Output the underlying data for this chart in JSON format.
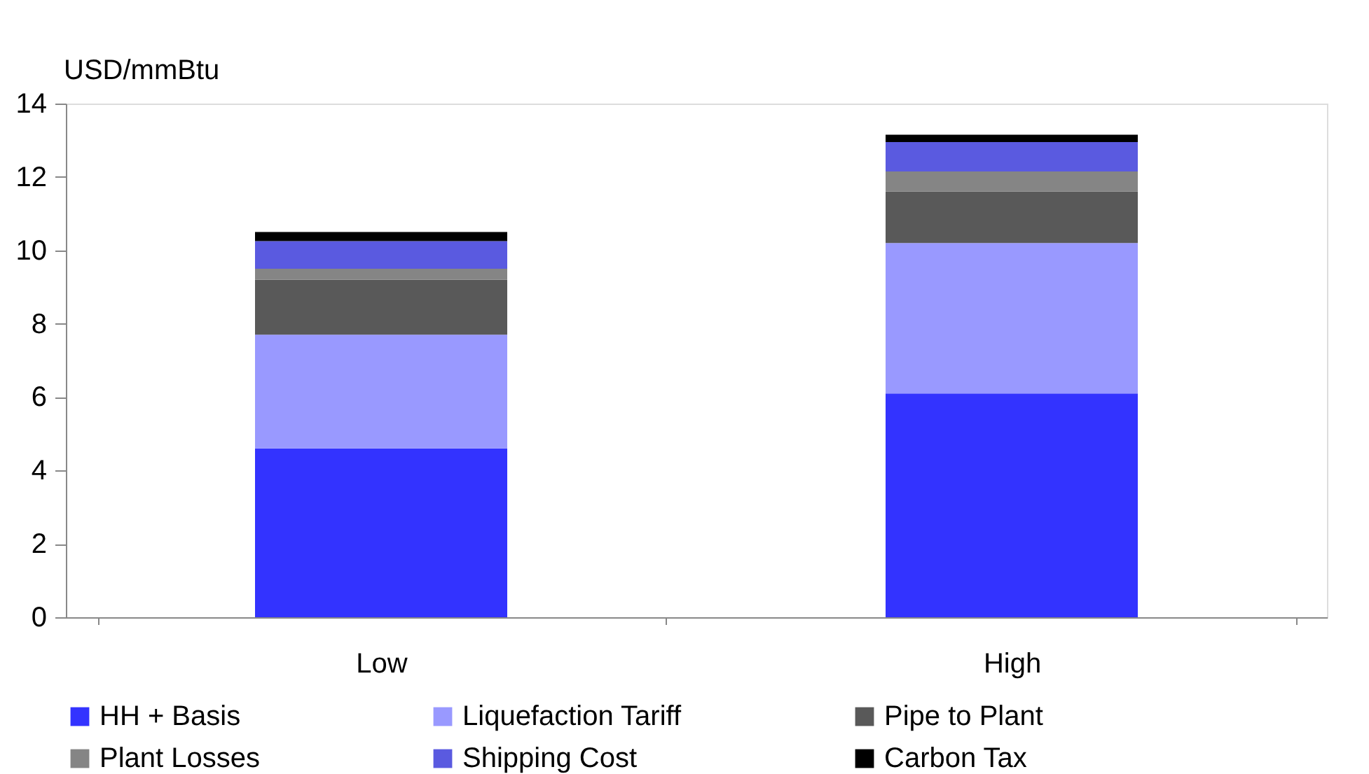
{
  "chart_data": {
    "type": "bar",
    "stacked": true,
    "ylabel": "USD/mmBtu",
    "categories": [
      "Low",
      "High"
    ],
    "series": [
      {
        "name": "HH + Basis",
        "color": "#3333ff",
        "values": [
          4.6,
          6.1
        ]
      },
      {
        "name": "Liquefaction Tariff",
        "color": "#9999ff",
        "values": [
          3.1,
          4.1
        ]
      },
      {
        "name": "Pipe to Plant",
        "color": "#595959",
        "values": [
          1.5,
          1.4
        ]
      },
      {
        "name": "Plant Losses",
        "color": "#858585",
        "values": [
          0.3,
          0.55
        ]
      },
      {
        "name": "Shipping Cost",
        "color": "#5a5ae0",
        "values": [
          0.75,
          0.8
        ]
      },
      {
        "name": "Carbon Tax",
        "color": "#000000",
        "values": [
          0.25,
          0.2
        ]
      }
    ],
    "ylim": [
      0,
      14
    ],
    "yticks": [
      0,
      2,
      4,
      6,
      8,
      10,
      12,
      14
    ],
    "grid": false,
    "legend": "bottom"
  }
}
